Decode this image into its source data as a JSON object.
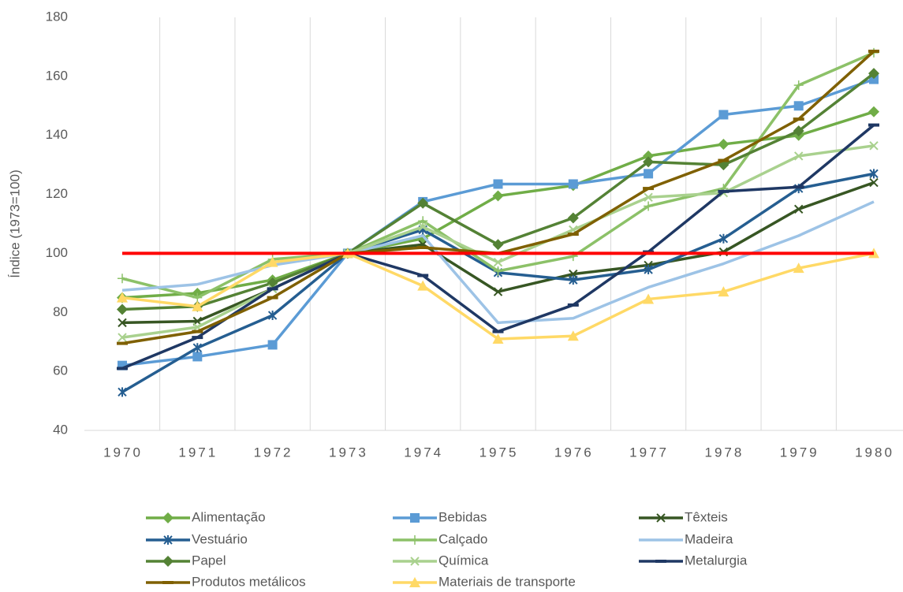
{
  "chart_data": {
    "type": "line",
    "y_label": "Índice (1973=100)",
    "categories": [
      "1970",
      "1971",
      "1972",
      "1973",
      "1974",
      "1975",
      "1976",
      "1977",
      "1978",
      "1979",
      "1980"
    ],
    "ylim": [
      40,
      180
    ],
    "yticks": [
      40,
      60,
      80,
      100,
      120,
      140,
      160,
      180
    ],
    "grid": true,
    "reference_line": {
      "value": 100,
      "color": "#ff0000"
    },
    "series": [
      {
        "name": "Alimentação",
        "color": "#70ad47",
        "marker": "diamond",
        "values": [
          85,
          86.5,
          91,
          100,
          105,
          119.5,
          123,
          133,
          137,
          140,
          148
        ]
      },
      {
        "name": "Bebidas",
        "color": "#5b9bd5",
        "marker": "square",
        "values": [
          62,
          65,
          69,
          100,
          117.5,
          123.5,
          123.5,
          127,
          147,
          150,
          159
        ]
      },
      {
        "name": "Têxteis",
        "color": "#375623",
        "marker": "x",
        "values": [
          76.5,
          77,
          88,
          100,
          103,
          87,
          93,
          96,
          100.5,
          115,
          124
        ]
      },
      {
        "name": "Vestuário",
        "color": "#255e91",
        "marker": "star",
        "values": [
          53,
          68,
          79,
          100,
          108,
          93.5,
          91,
          94.5,
          105,
          122,
          127
        ]
      },
      {
        "name": "Calçado",
        "color": "#8cc168",
        "marker": "plus",
        "values": [
          91.5,
          85,
          98,
          100,
          111,
          94,
          99,
          116,
          122,
          157,
          168
        ]
      },
      {
        "name": "Madeira",
        "color": "#9dc3e6",
        "marker": "none",
        "values": [
          87.5,
          89.5,
          96,
          100,
          106,
          76.5,
          78,
          88.5,
          96.5,
          106,
          117.5
        ]
      },
      {
        "name": "Papel",
        "color": "#548235",
        "marker": "diamond",
        "values": [
          81,
          82,
          90,
          100,
          117,
          103,
          112,
          131,
          130,
          141.5,
          161
        ]
      },
      {
        "name": "Química",
        "color": "#a9d18e",
        "marker": "x",
        "values": [
          71.5,
          75,
          88,
          100,
          109,
          97,
          108,
          119,
          120.5,
          133,
          136.5
        ]
      },
      {
        "name": "Metalurgia",
        "color": "#1f3864",
        "marker": "dash",
        "values": [
          61,
          71.5,
          88,
          100,
          92.5,
          73.5,
          82.5,
          100.5,
          121,
          122.5,
          143.5
        ]
      },
      {
        "name": "Produtos metálicos",
        "color": "#7f6000",
        "marker": "dash",
        "values": [
          69.5,
          73.5,
          85,
          100,
          102,
          100,
          106.5,
          122,
          131.5,
          145.5,
          168.5
        ]
      },
      {
        "name": "Materiais de transporte",
        "color": "#ffd966",
        "marker": "triangle",
        "values": [
          85,
          82,
          97,
          100,
          89,
          71,
          72,
          84.5,
          87,
          95,
          100
        ]
      }
    ]
  }
}
